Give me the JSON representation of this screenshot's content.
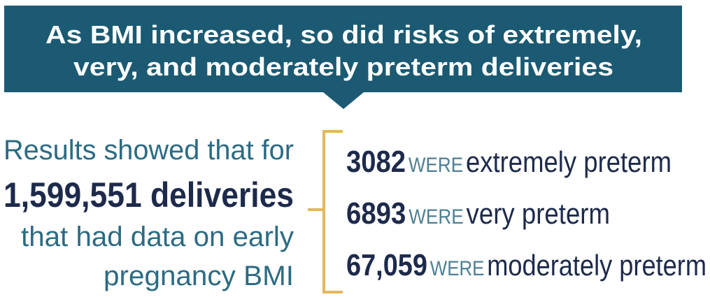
{
  "header": {
    "title_lines": [
      "As BMI increased, so did risks of extremely,",
      "very, and moderately preterm deliveries"
    ]
  },
  "summary": {
    "lines": [
      "Results showed that for",
      "1,599,551 deliveries",
      "that had data on early",
      "pregnancy BMI"
    ]
  },
  "results": [
    {
      "count": "3082",
      "connector": "WERE",
      "label": "extremely preterm"
    },
    {
      "count": "6893",
      "connector": "WERE",
      "label": "very preterm"
    },
    {
      "count": "67,059",
      "connector": "WERE",
      "label": "moderately preterm"
    }
  ]
}
